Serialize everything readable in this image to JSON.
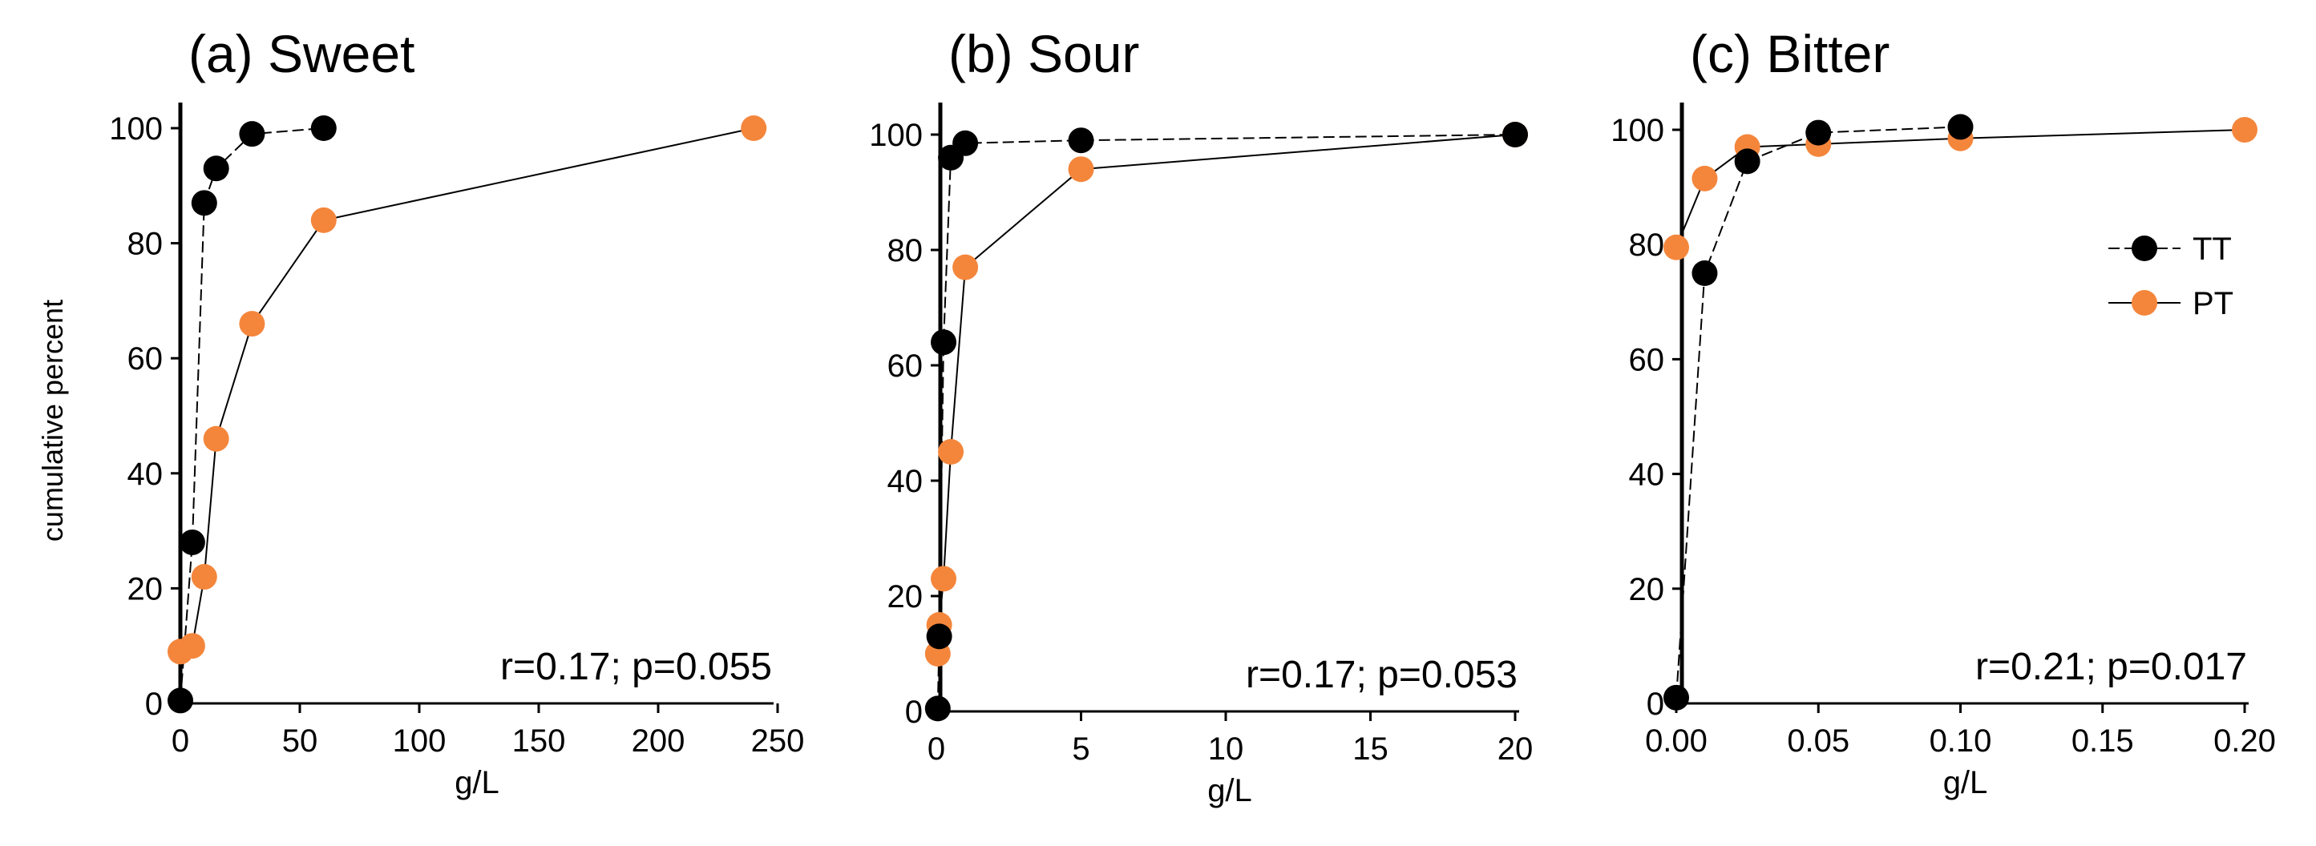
{
  "colors": {
    "TT": "#000000",
    "PT": "#F4863C",
    "axis": "#000000"
  },
  "legend": {
    "entries": [
      {
        "key": "TT",
        "label": "TT"
      },
      {
        "key": "PT",
        "label": "PT"
      }
    ],
    "placement": "right, inside panel (c)"
  },
  "shared_ylabel": "cumulative percent",
  "chart_data": [
    {
      "type": "line",
      "title": "(a) Sweet",
      "xlabel": "g/L",
      "ylabel": "cumulative percent",
      "xlim": [
        0,
        250
      ],
      "ylim": [
        0,
        100
      ],
      "xticks": [
        0,
        50,
        100,
        150,
        200,
        250
      ],
      "yticks": [
        0,
        20,
        40,
        60,
        80,
        100
      ],
      "xtick_labels": [
        "0",
        "50",
        "100",
        "150",
        "200",
        "250"
      ],
      "ytick_labels": [
        "0",
        "20",
        "40",
        "60",
        "80",
        "100"
      ],
      "annotation": "r=0.17; p=0.055",
      "grid": false,
      "series": [
        {
          "key": "TT",
          "name": "TT",
          "line": "dashed",
          "points": [
            [
              0,
              0.5
            ],
            [
              5,
              28
            ],
            [
              10,
              87
            ],
            [
              15,
              93
            ],
            [
              30,
              99
            ],
            [
              60,
              100
            ]
          ]
        },
        {
          "key": "PT",
          "name": "PT",
          "line": "solid",
          "points": [
            [
              0,
              9
            ],
            [
              5,
              10
            ],
            [
              10,
              22
            ],
            [
              15,
              46
            ],
            [
              30,
              66
            ],
            [
              60,
              84
            ],
            [
              240,
              100
            ]
          ]
        }
      ]
    },
    {
      "type": "line",
      "title": "(b) Sour",
      "xlabel": "g/L",
      "ylabel": "",
      "xlim": [
        0,
        20
      ],
      "ylim": [
        0,
        100
      ],
      "xticks": [
        0,
        5,
        10,
        15,
        20
      ],
      "yticks": [
        0,
        20,
        40,
        60,
        80,
        100
      ],
      "xtick_labels": [
        "0",
        "5",
        "10",
        "15",
        "20"
      ],
      "ytick_labels": [
        "0",
        "20",
        "40",
        "60",
        "80",
        "100"
      ],
      "annotation": "r=0.17; p=0.053",
      "grid": false,
      "series": [
        {
          "key": "TT",
          "name": "TT",
          "line": "dashed",
          "points": [
            [
              0.05,
              0.5
            ],
            [
              0.1,
              13
            ],
            [
              0.25,
              64
            ],
            [
              0.5,
              96
            ],
            [
              1,
              98.5
            ],
            [
              5,
              99
            ],
            [
              20,
              100
            ]
          ]
        },
        {
          "key": "PT",
          "name": "PT",
          "line": "solid",
          "points": [
            [
              0.05,
              10
            ],
            [
              0.1,
              15
            ],
            [
              0.25,
              23
            ],
            [
              0.5,
              45
            ],
            [
              1,
              77
            ],
            [
              5,
              94
            ],
            [
              20,
              100
            ]
          ]
        }
      ]
    },
    {
      "type": "line",
      "title": "(c) Bitter",
      "xlabel": "g/L",
      "ylabel": "",
      "xlim": [
        0,
        0.2
      ],
      "ylim": [
        0,
        100
      ],
      "xticks": [
        0,
        0.05,
        0.1,
        0.15,
        0.2
      ],
      "yticks": [
        0,
        20,
        40,
        60,
        80,
        100
      ],
      "xtick_labels": [
        "0.00",
        "0.05",
        "0.10",
        "0.15",
        "0.20"
      ],
      "ytick_labels": [
        "0",
        "20",
        "40",
        "60",
        "80",
        "100"
      ],
      "annotation": "r=0.21; p=0.017",
      "grid": false,
      "series": [
        {
          "key": "TT",
          "name": "TT",
          "line": "dashed",
          "points": [
            [
              0,
              1
            ],
            [
              0.01,
              75
            ],
            [
              0.025,
              94.5
            ],
            [
              0.05,
              99.5
            ],
            [
              0.1,
              100.5
            ]
          ]
        },
        {
          "key": "PT",
          "name": "PT",
          "line": "solid",
          "points": [
            [
              0,
              79.5
            ],
            [
              0.01,
              91.5
            ],
            [
              0.025,
              97
            ],
            [
              0.05,
              97.5
            ],
            [
              0.1,
              98.5
            ],
            [
              0.2,
              100
            ]
          ]
        }
      ]
    }
  ]
}
